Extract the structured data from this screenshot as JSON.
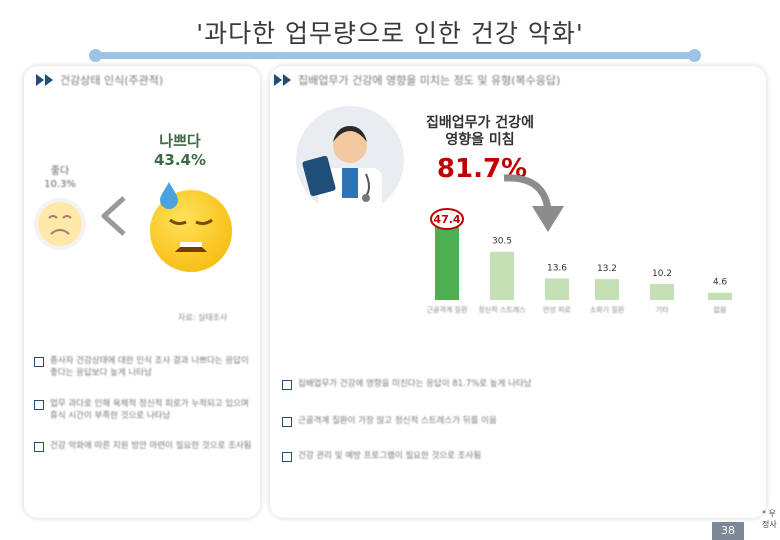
{
  "title": "'과다한 업무량으로 인한 건강 악화'",
  "left_panel": {
    "heading": "건강상태 인식(주관적)",
    "bad_label": "나쁘다",
    "bad_value": "43.4%",
    "good_label": "좋다",
    "good_value": "10.3%",
    "source": "자료: 실태조사",
    "bullets": [
      "종사자 건강상태에 대한 인식 조사 결과 나쁘다는 응답이 좋다는 응답보다 높게 나타남",
      "업무 과다로 인해 육체적 정신적 피로가 누적되고 있으며 휴식 시간이 부족한 것으로 나타남",
      "건강 악화에 따른 지원 방안 마련이 필요한 것으로 조사됨"
    ]
  },
  "right_panel": {
    "heading": "집배업무가 건강에 영향을 미치는 정도 및 유형(복수응답)",
    "headline_line1": "집배업무가 건강에",
    "headline_line2": "영향을 미침",
    "headline_value": "81.7%",
    "bullets": [
      "집배업무가 건강에 영향을 미친다는 응답이 81.7%로 높게 나타남",
      "근골격계 질환이 가장 많고 정신적 스트레스가 뒤를 이음",
      "건강 관리 및 예방 프로그램이 필요한 것으로 조사됨"
    ]
  },
  "chart_data": {
    "type": "bar",
    "categories": [
      "근골격계 질환",
      "정신적 스트레스",
      "만성 피로",
      "소화기 질환",
      "기타",
      "없음"
    ],
    "values": [
      47.4,
      30.5,
      13.6,
      13.2,
      10.2,
      4.6
    ],
    "value_labels": [
      "47.4",
      "30.5",
      "13.6",
      "13.2",
      "10.2",
      "4.6"
    ],
    "highlight_color": "#4caf50",
    "bar_color": "#c5e0b4"
  },
  "source_note": "* 우정사",
  "page_number": "38"
}
